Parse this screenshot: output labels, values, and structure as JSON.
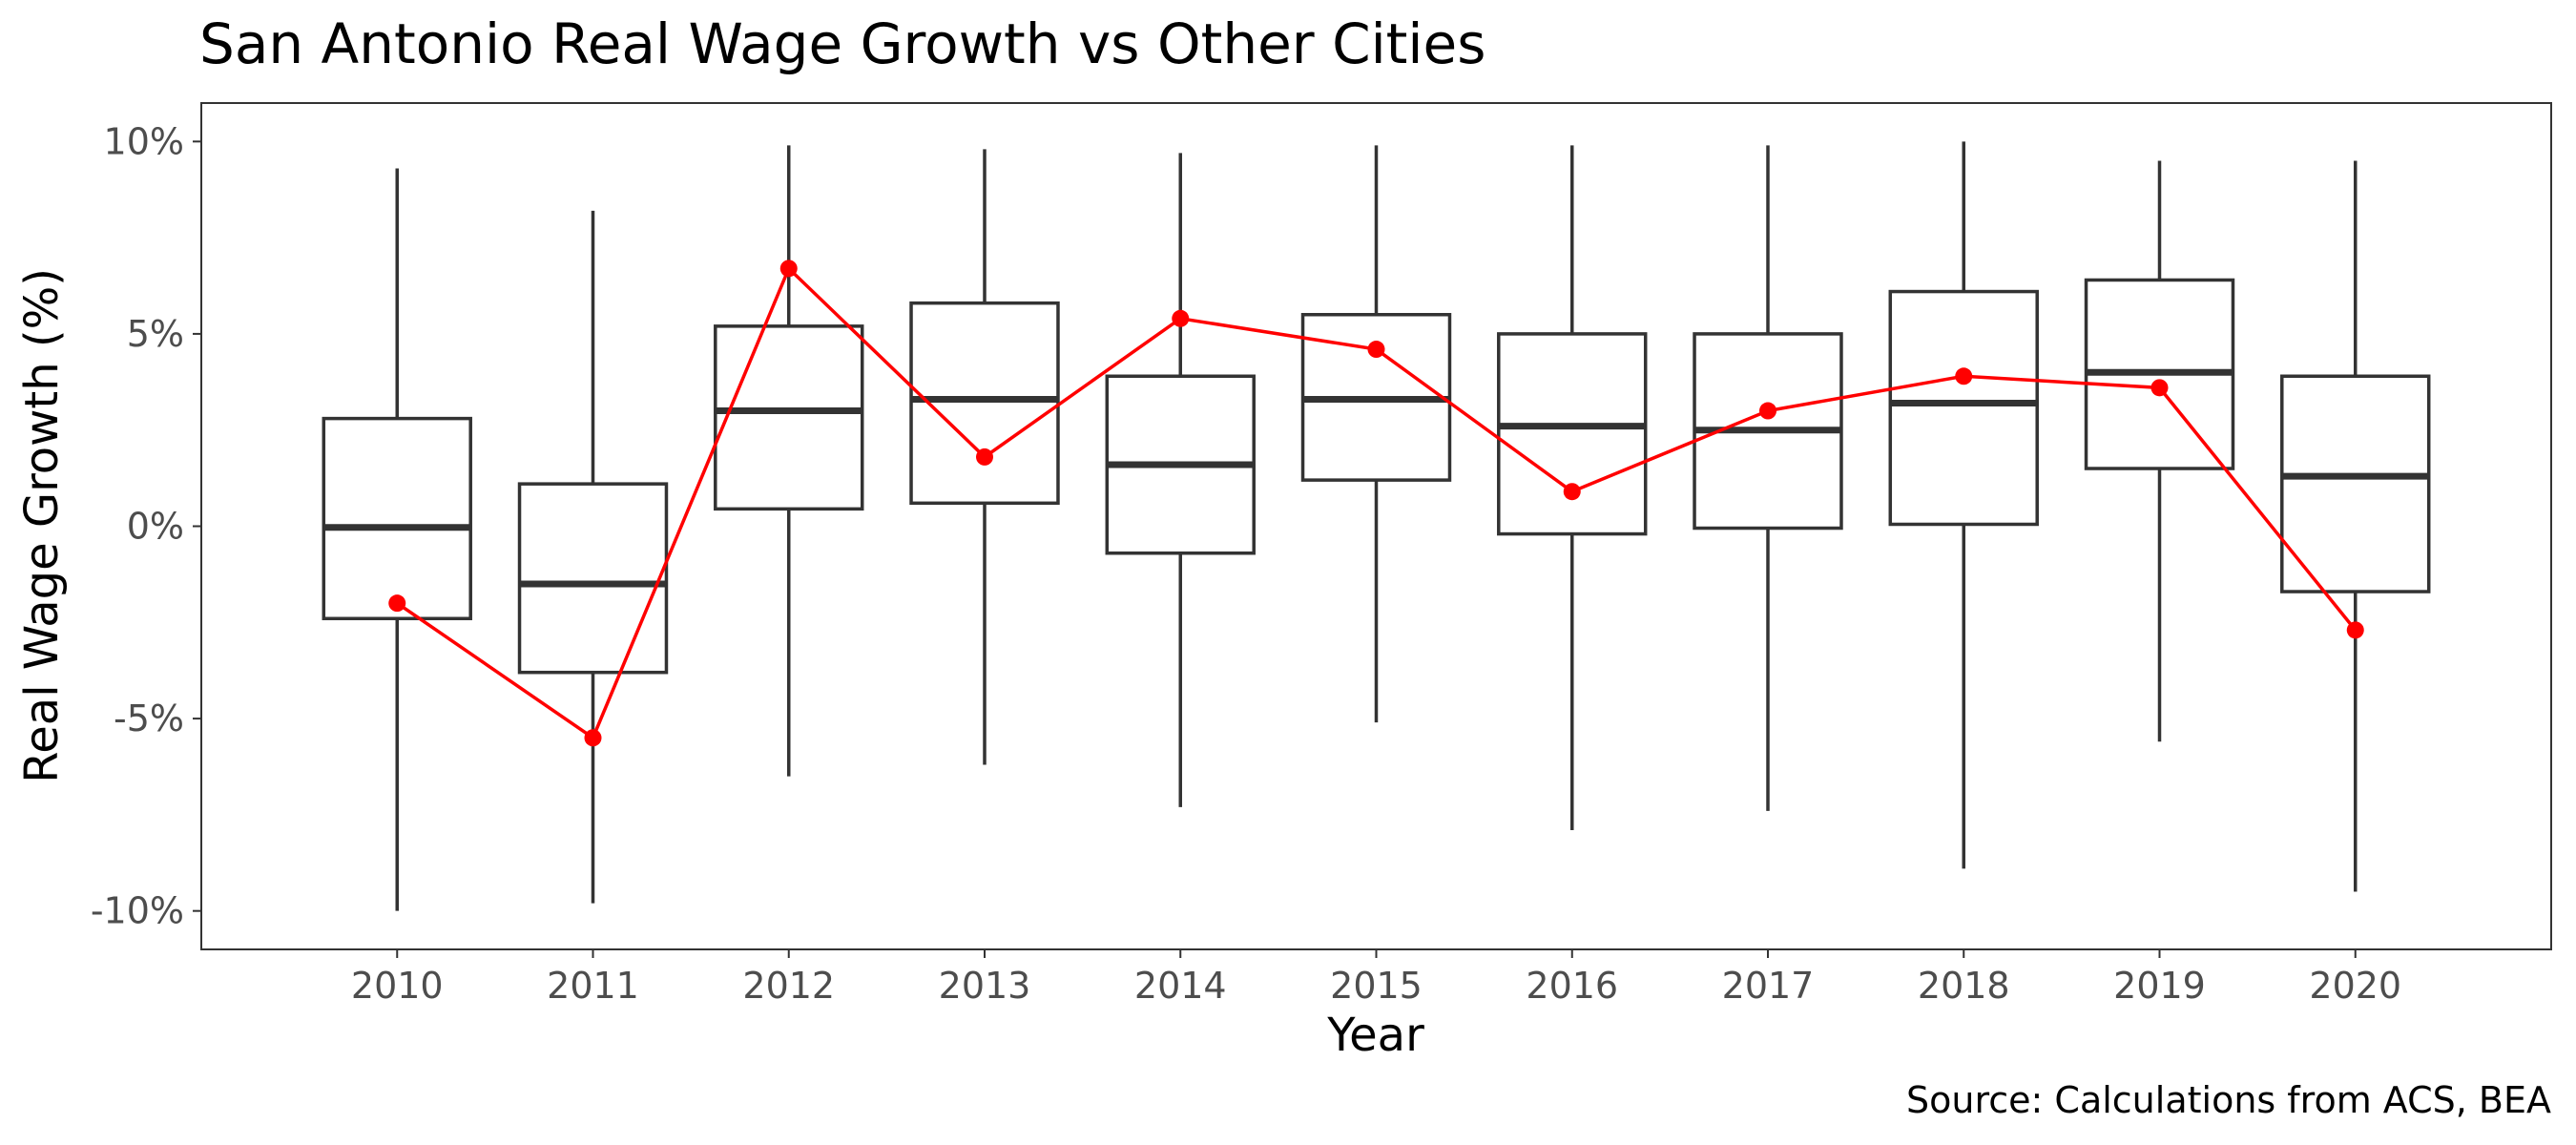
{
  "chart_data": {
    "type": "boxplot",
    "title": "San Antonio Real Wage Growth vs Other Cities",
    "xlabel": "Year",
    "ylabel": "Real Wage Growth (%)",
    "caption": "Source: Calculations from ACS, BEA",
    "ylim": [
      -11,
      11
    ],
    "yticks": [
      -10,
      -5,
      0,
      5,
      10
    ],
    "ytick_labels": [
      "-10%",
      "-5%",
      "0%",
      "5%",
      "10%"
    ],
    "grid": false,
    "categories": [
      "2010",
      "2011",
      "2012",
      "2013",
      "2014",
      "2015",
      "2016",
      "2017",
      "2018",
      "2019",
      "2020"
    ],
    "boxes": [
      {
        "min": -10.0,
        "q1": -2.4,
        "median": -0.03,
        "q3": 2.8,
        "max": 9.3
      },
      {
        "min": -9.8,
        "q1": -3.8,
        "median": -1.5,
        "q3": 1.1,
        "max": 8.2
      },
      {
        "min": -6.5,
        "q1": 0.45,
        "median": 3.0,
        "q3": 5.2,
        "max": 9.9
      },
      {
        "min": -6.2,
        "q1": 0.6,
        "median": 3.3,
        "q3": 5.8,
        "max": 9.8
      },
      {
        "min": -7.3,
        "q1": -0.7,
        "median": 1.6,
        "q3": 3.9,
        "max": 9.7
      },
      {
        "min": -5.1,
        "q1": 1.2,
        "median": 3.3,
        "q3": 5.5,
        "max": 9.9
      },
      {
        "min": -7.9,
        "q1": -0.2,
        "median": 2.6,
        "q3": 5.0,
        "max": 9.9
      },
      {
        "min": -7.4,
        "q1": -0.05,
        "median": 2.5,
        "q3": 5.0,
        "max": 9.9
      },
      {
        "min": -8.9,
        "q1": 0.05,
        "median": 3.2,
        "q3": 6.1,
        "max": 10.0
      },
      {
        "min": -5.6,
        "q1": 1.5,
        "median": 4.0,
        "q3": 6.4,
        "max": 9.5
      },
      {
        "min": -9.5,
        "q1": -1.7,
        "median": 1.3,
        "q3": 3.9,
        "max": 9.5
      }
    ],
    "series": [
      {
        "values": [
          -2.0,
          -5.5,
          6.7,
          1.8,
          5.4,
          4.6,
          0.9,
          3.0,
          3.9,
          3.6,
          -2.7
        ],
        "color": "#ff0000"
      }
    ],
    "colors": {
      "box_stroke": "#333333",
      "panel_border": "#333333",
      "line": "#ff0000"
    }
  }
}
